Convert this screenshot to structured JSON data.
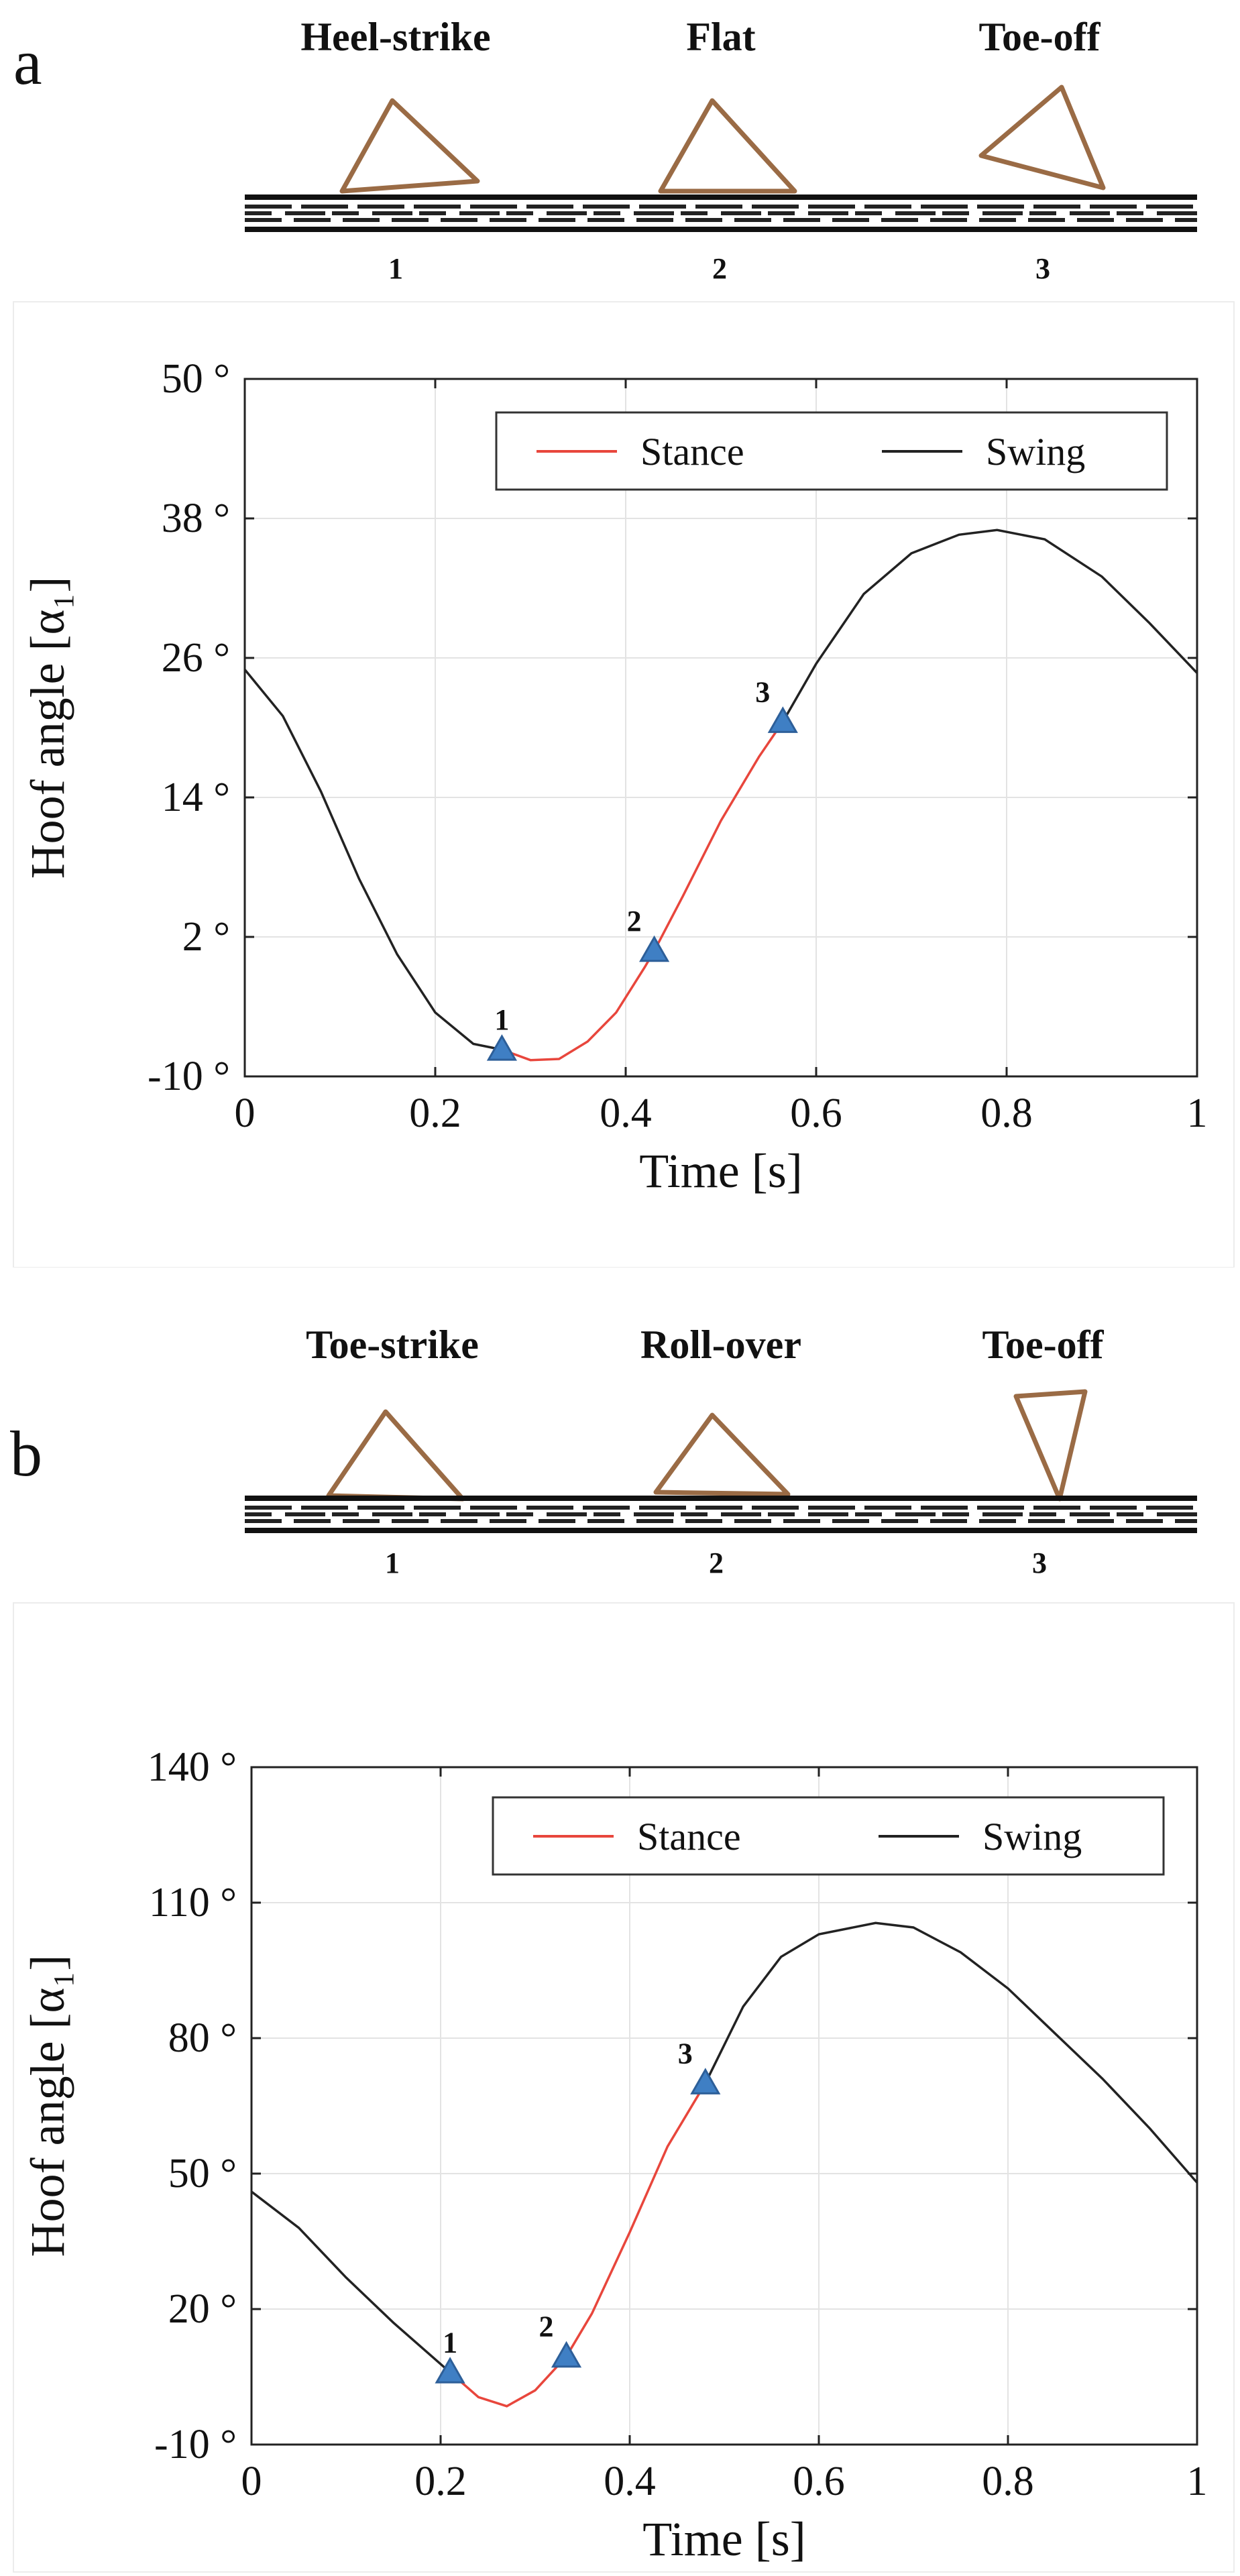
{
  "panels": [
    {
      "letter": "a",
      "phases": [
        "Heel-strike",
        "Flat",
        "Toe-off"
      ],
      "phase_numbers": [
        "1",
        "2",
        "3"
      ]
    },
    {
      "letter": "b",
      "phases": [
        "Toe-strike",
        "Roll-over",
        "Toe-off"
      ],
      "phase_numbers": [
        "1",
        "2",
        "3"
      ]
    }
  ],
  "chart_data": [
    {
      "type": "line",
      "xlabel": "Time [s]",
      "ylabel": "Hoof angle [α₁]",
      "xlim": [
        0,
        1
      ],
      "ylim": [
        -10,
        50
      ],
      "x_ticks": [
        0,
        0.2,
        0.4,
        0.6,
        0.8,
        1
      ],
      "x_tick_labels": [
        "0",
        "0.2",
        "0.4",
        "0.6",
        "0.8",
        "1"
      ],
      "y_ticks": [
        -10,
        2,
        14,
        26,
        38,
        50
      ],
      "y_tick_labels": [
        "-10 °",
        "2 °",
        "14 °",
        "26 °",
        "38 °",
        "50 °"
      ],
      "grid": true,
      "legend_position": "top-right",
      "legend_entries": [
        {
          "name": "Stance",
          "color": "#e8463c"
        },
        {
          "name": "Swing",
          "color": "#222222"
        }
      ],
      "series": [
        {
          "name": "Swing",
          "color": "#222222",
          "x": [
            0,
            0.04,
            0.08,
            0.12,
            0.16,
            0.2,
            0.24,
            0.27
          ],
          "y": [
            25,
            21,
            14.5,
            7,
            0.5,
            -4.5,
            -7.2,
            -7.7
          ]
        },
        {
          "name": "Stance",
          "color": "#e8463c",
          "x": [
            0.27,
            0.3,
            0.33,
            0.36,
            0.39,
            0.42,
            0.43,
            0.46,
            0.5,
            0.54,
            0.565
          ],
          "y": [
            -7.7,
            -8.6,
            -8.5,
            -7,
            -4.5,
            -0.6,
            0.8,
            5.5,
            12,
            17.5,
            20.5
          ]
        },
        {
          "name": "Swing",
          "color": "#222222",
          "x": [
            0.565,
            0.6,
            0.65,
            0.7,
            0.75,
            0.79,
            0.84,
            0.9,
            0.95,
            1
          ],
          "y": [
            20.5,
            25.5,
            31.5,
            35,
            36.6,
            37,
            36.2,
            33,
            29,
            24.7
          ]
        }
      ],
      "markers": [
        {
          "label": "1",
          "x": 0.27,
          "y": -7.7
        },
        {
          "label": "2",
          "x": 0.43,
          "y": 0.8
        },
        {
          "label": "3",
          "x": 0.565,
          "y": 20.5
        }
      ]
    },
    {
      "type": "line",
      "xlabel": "Time [s]",
      "ylabel": "Hoof angle [α₁]",
      "xlim": [
        0,
        1
      ],
      "ylim": [
        -10,
        140
      ],
      "x_ticks": [
        0,
        0.2,
        0.4,
        0.6,
        0.8,
        1
      ],
      "x_tick_labels": [
        "0",
        "0.2",
        "0.4",
        "0.6",
        "0.8",
        "1"
      ],
      "y_ticks": [
        -10,
        20,
        50,
        80,
        110,
        140
      ],
      "y_tick_labels": [
        "-10 °",
        "20 °",
        "50 °",
        "80 °",
        "110 °",
        "140 °"
      ],
      "grid": true,
      "legend_position": "top-right",
      "legend_entries": [
        {
          "name": "Stance",
          "color": "#e8463c"
        },
        {
          "name": "Swing",
          "color": "#222222"
        }
      ],
      "series": [
        {
          "name": "Swing",
          "color": "#222222",
          "x": [
            0,
            0.05,
            0.1,
            0.15,
            0.21
          ],
          "y": [
            46,
            38,
            27,
            17,
            6
          ]
        },
        {
          "name": "Stance",
          "color": "#e8463c",
          "x": [
            0.21,
            0.24,
            0.27,
            0.3,
            0.333,
            0.36,
            0.4,
            0.44,
            0.48
          ],
          "y": [
            6,
            0.5,
            -1.5,
            2,
            9.5,
            19,
            37,
            56,
            70
          ]
        },
        {
          "name": "Swing",
          "color": "#222222",
          "x": [
            0.48,
            0.52,
            0.56,
            0.6,
            0.66,
            0.7,
            0.75,
            0.8,
            0.85,
            0.9,
            0.95,
            1
          ],
          "y": [
            70,
            87,
            98,
            103,
            105.5,
            104.5,
            99,
            91,
            81,
            71,
            60,
            48
          ]
        }
      ],
      "markers": [
        {
          "label": "1",
          "x": 0.21,
          "y": 6
        },
        {
          "label": "2",
          "x": 0.333,
          "y": 9.5
        },
        {
          "label": "3",
          "x": 0.48,
          "y": 70
        }
      ]
    }
  ]
}
